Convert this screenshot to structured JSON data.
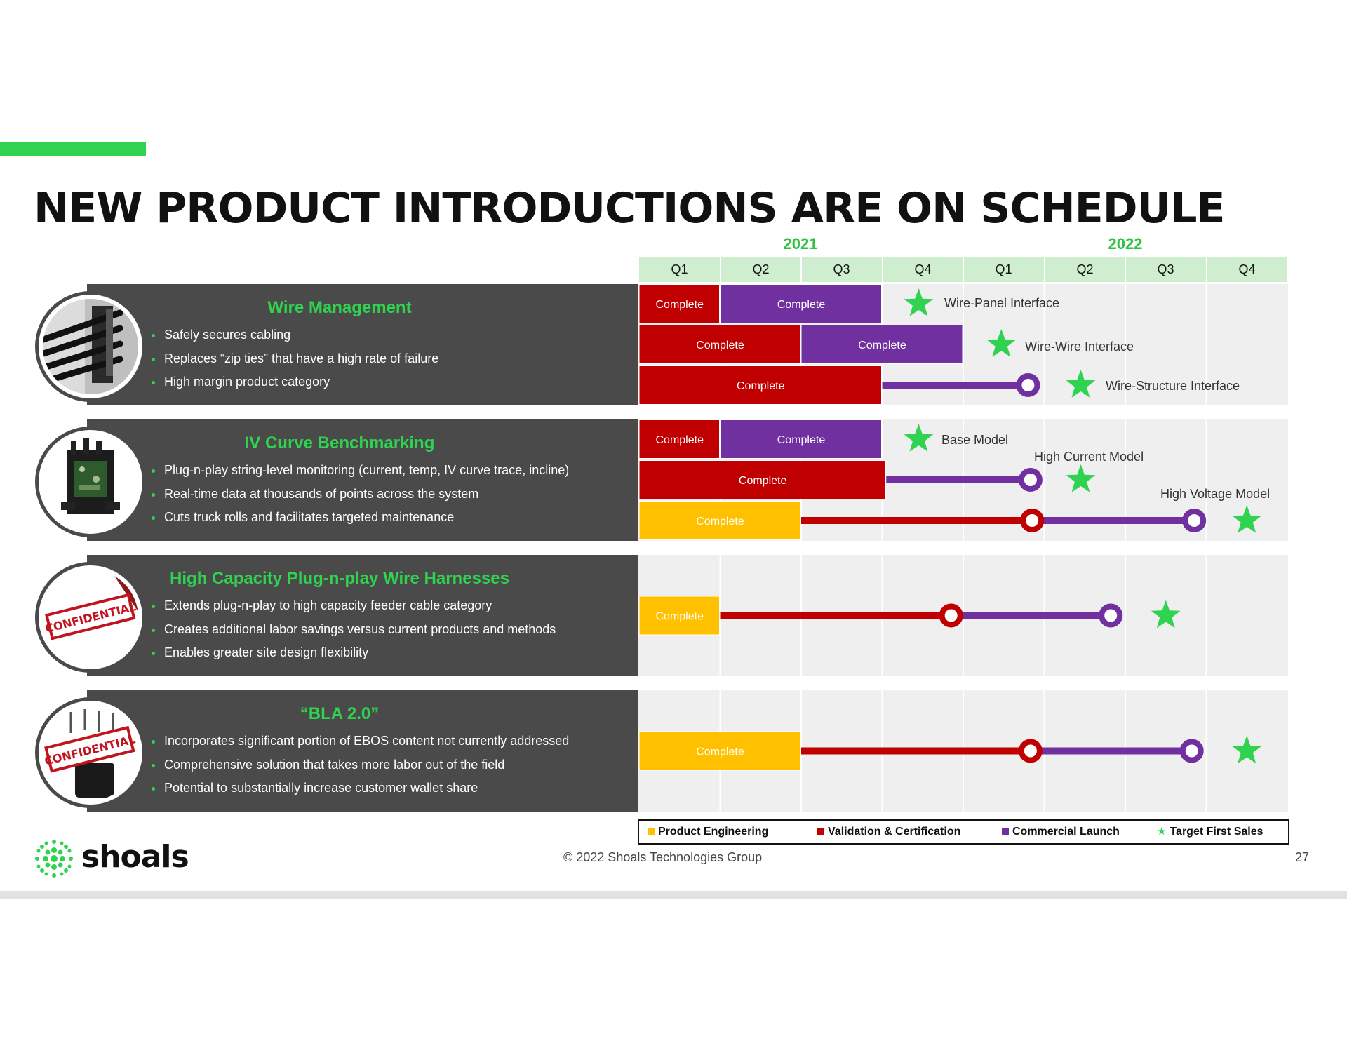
{
  "title": "NEW PRODUCT INTRODUCTIONS ARE ON SCHEDULE",
  "years": [
    "2021",
    "2022"
  ],
  "quarters": [
    "Q1",
    "Q2",
    "Q3",
    "Q4",
    "Q1",
    "Q2",
    "Q3",
    "Q4"
  ],
  "colors": {
    "accent_green": "#2fd34f",
    "product_engineering": "#ffc000",
    "validation_certification": "#c00000",
    "commercial_launch": "#7030a0",
    "target_star": "#2fd34f",
    "panel_bg": "#4a4a4a",
    "grid_bg": "#efefef",
    "quarter_header_bg": "#cfeecf"
  },
  "sections": [
    {
      "heading": "Wire Management",
      "image_icon": "wire-clip-photo",
      "bullets": [
        "Safely secures cabling",
        "Replaces “zip ties” that have a high rate of failure",
        "High margin product category"
      ]
    },
    {
      "heading": "IV Curve Benchmarking",
      "image_icon": "circuit-board-photo",
      "bullets": [
        "Plug-n-play string-level monitoring (current, temp, IV curve trace, incline)",
        "Real-time data at thousands of points across the system",
        "Cuts truck rolls and facilitates targeted maintenance"
      ]
    },
    {
      "heading": "High Capacity Plug-n-play Wire Harnesses",
      "image_icon": "confidential-stamp-photo",
      "stamp": "CONFIDENTIAL",
      "bullets": [
        "Extends plug-n-play to high capacity feeder cable category",
        "Creates additional labor savings versus current products and methods",
        "Enables greater site design flexibility"
      ]
    },
    {
      "heading": "“BLA 2.0”",
      "image_icon": "confidential-stamp-photo",
      "stamp": "CONFIDENTIAL",
      "bullets": [
        "Incorporates significant portion of EBOS content not currently addressed",
        "Comprehensive solution that takes more labor out of the field",
        "Potential to substantially increase customer wallet share"
      ]
    }
  ],
  "chart_data": {
    "type": "timeline",
    "x_categories": [
      "2021 Q1",
      "2021 Q2",
      "2021 Q3",
      "2021 Q4",
      "2022 Q1",
      "2022 Q2",
      "2022 Q3",
      "2022 Q4"
    ],
    "phases": {
      "PE": "Product Engineering",
      "VC": "Validation & Certification",
      "CL": "Commercial Launch",
      "TFS": "Target First Sales"
    },
    "rows": [
      {
        "section": 0,
        "bars": [
          {
            "phase": "VC",
            "start": 0,
            "end": 1,
            "label": "Complete"
          },
          {
            "phase": "CL",
            "start": 1,
            "end": 3,
            "label": "Complete"
          }
        ],
        "lines": [],
        "milestones": [],
        "star": 3.45,
        "star_label": "Wire-Panel Interface"
      },
      {
        "section": 0,
        "bars": [
          {
            "phase": "VC",
            "start": 0,
            "end": 2,
            "label": "Complete"
          },
          {
            "phase": "CL",
            "start": 2,
            "end": 4,
            "label": "Complete"
          }
        ],
        "lines": [],
        "milestones": [],
        "star": 4.47,
        "star_label": "Wire-Wire Interface"
      },
      {
        "section": 0,
        "bars": [
          {
            "phase": "VC",
            "start": 0,
            "end": 3,
            "label": "Complete"
          }
        ],
        "lines": [
          {
            "phase": "CL",
            "start": 3,
            "end": 4.8
          }
        ],
        "milestones": [
          {
            "phase": "CL",
            "at": 4.8
          }
        ],
        "star": 5.45,
        "star_label": "Wire-Structure Interface"
      },
      {
        "section": 1,
        "bars": [
          {
            "phase": "VC",
            "start": 0,
            "end": 1,
            "label": "Complete"
          },
          {
            "phase": "CL",
            "start": 1,
            "end": 3,
            "label": "Complete"
          }
        ],
        "lines": [],
        "milestones": [],
        "star": 3.45,
        "star_label": "Base Model"
      },
      {
        "section": 1,
        "bars": [
          {
            "phase": "VC",
            "start": 0,
            "end": 3.05,
            "label": "Complete"
          }
        ],
        "lines": [
          {
            "phase": "CL",
            "start": 3.05,
            "end": 4.83
          }
        ],
        "milestones": [
          {
            "phase": "CL",
            "at": 4.83
          }
        ],
        "star": 5.45,
        "star_label": "High Current Model"
      },
      {
        "section": 1,
        "bars": [
          {
            "phase": "PE",
            "start": 0,
            "end": 2,
            "label": "Complete"
          }
        ],
        "lines": [
          {
            "phase": "VC",
            "start": 2,
            "end": 4.85
          },
          {
            "phase": "CL",
            "start": 4.85,
            "end": 6.85
          }
        ],
        "milestones": [
          {
            "phase": "VC",
            "at": 4.85
          },
          {
            "phase": "CL",
            "at": 6.85
          }
        ],
        "star": 7.5,
        "star_label": "High Voltage Model"
      },
      {
        "section": 2,
        "bars": [
          {
            "phase": "PE",
            "start": 0,
            "end": 1,
            "label": "Complete"
          }
        ],
        "lines": [
          {
            "phase": "VC",
            "start": 1,
            "end": 3.85
          },
          {
            "phase": "CL",
            "start": 3.85,
            "end": 5.82
          }
        ],
        "milestones": [
          {
            "phase": "VC",
            "at": 3.85
          },
          {
            "phase": "CL",
            "at": 5.82
          }
        ],
        "star": 6.5,
        "star_label": ""
      },
      {
        "section": 3,
        "bars": [
          {
            "phase": "PE",
            "start": 0,
            "end": 2,
            "label": "Complete"
          }
        ],
        "lines": [
          {
            "phase": "VC",
            "start": 2,
            "end": 4.83
          },
          {
            "phase": "CL",
            "start": 4.83,
            "end": 6.82
          }
        ],
        "milestones": [
          {
            "phase": "VC",
            "at": 4.83
          },
          {
            "phase": "CL",
            "at": 6.82
          }
        ],
        "star": 7.5,
        "star_label": ""
      }
    ]
  },
  "legend": [
    {
      "key": "PE",
      "label": "Product Engineering",
      "color": "#ffc000",
      "icon": "square"
    },
    {
      "key": "VC",
      "label": "Validation & Certification",
      "color": "#c00000",
      "icon": "square"
    },
    {
      "key": "CL",
      "label": "Commercial Launch",
      "color": "#7030a0",
      "icon": "square"
    },
    {
      "key": "TFS",
      "label": "Target First Sales",
      "color": "#2fd34f",
      "icon": "star"
    }
  ],
  "footer": {
    "brand": "shoals",
    "logo_icon": "shoals-dot-flower-logo",
    "copyright": "© 2022 Shoals Technologies Group",
    "page_number": "27"
  }
}
